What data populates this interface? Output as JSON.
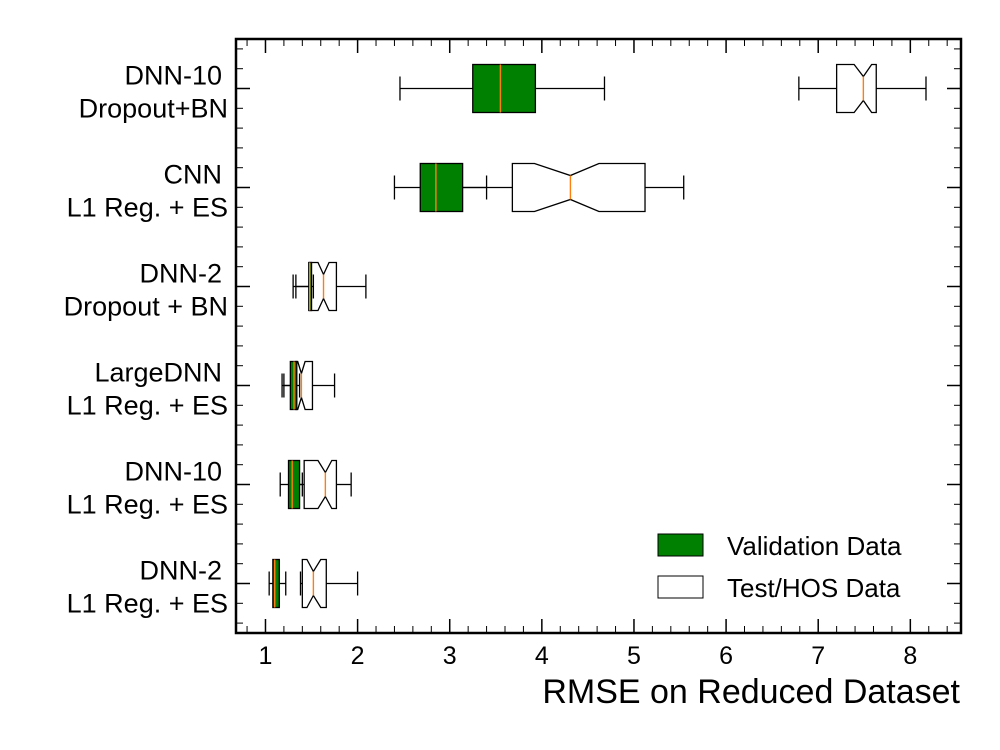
{
  "chart_data": {
    "type": "boxplot",
    "orientation": "horizontal",
    "title": "",
    "xlabel": "RMSE on Reduced Dataset",
    "ylabel": "",
    "xlim": [
      0.68,
      8.55
    ],
    "xticks": [
      1,
      2,
      3,
      4,
      5,
      6,
      7,
      8
    ],
    "grid": false,
    "legend_position": "bottom-right",
    "categories": [
      [
        "DNN-10",
        "Dropout+BN"
      ],
      [
        "CNN",
        "L1 Reg. + ES"
      ],
      [
        "DNN-2",
        "Dropout + BN"
      ],
      [
        "LargeDNN",
        "L1 Reg. + ES"
      ],
      [
        "DNN-10",
        "L1 Reg. + ES"
      ],
      [
        "DNN-2",
        "L1 Reg. + ES"
      ]
    ],
    "series": [
      {
        "name": "Validation Data",
        "color": "#008000",
        "notched": false,
        "boxes": [
          {
            "whislo": 2.46,
            "q1": 3.25,
            "med": 3.55,
            "q3": 3.93,
            "whishi": 4.68
          },
          {
            "whislo": 2.4,
            "q1": 2.68,
            "med": 2.85,
            "q3": 3.14,
            "whishi": 3.4
          },
          {
            "whislo": 1.3,
            "q1": 1.47,
            "med": 1.48,
            "q3": 1.5,
            "whishi": 1.52
          },
          {
            "whislo": 1.18,
            "q1": 1.27,
            "med": 1.31,
            "q3": 1.34,
            "whishi": 1.37
          },
          {
            "whislo": 1.16,
            "q1": 1.25,
            "med": 1.29,
            "q3": 1.37,
            "whishi": 1.4
          },
          {
            "whislo": 1.04,
            "q1": 1.08,
            "med": 1.1,
            "q3": 1.15,
            "whishi": 1.22
          }
        ]
      },
      {
        "name": "Test/HOS Data",
        "color": "#ffffff",
        "notched": true,
        "boxes": [
          {
            "whislo": 6.79,
            "q1": 7.2,
            "med": 7.49,
            "q3": 7.63,
            "whishi": 8.17,
            "notch_lo": 7.39,
            "notch_hi": 7.58
          },
          {
            "whislo": 2.76,
            "q1": 3.68,
            "med": 4.31,
            "q3": 5.12,
            "whishi": 5.54,
            "notch_lo": 3.92,
            "notch_hi": 4.62
          },
          {
            "whislo": 1.33,
            "q1": 1.48,
            "med": 1.63,
            "q3": 1.77,
            "whishi": 2.09,
            "notch_lo": 1.57,
            "notch_hi": 1.69
          },
          {
            "whislo": 1.2,
            "q1": 1.33,
            "med": 1.39,
            "q3": 1.51,
            "whishi": 1.75,
            "notch_lo": 1.35,
            "notch_hi": 1.43
          },
          {
            "whislo": 1.3,
            "q1": 1.42,
            "med": 1.65,
            "q3": 1.77,
            "whishi": 1.93,
            "notch_lo": 1.57,
            "notch_hi": 1.72
          },
          {
            "whislo": 1.38,
            "q1": 1.4,
            "med": 1.52,
            "q3": 1.66,
            "whishi": 2.0,
            "notch_lo": 1.45,
            "notch_hi": 1.6
          }
        ]
      }
    ],
    "median_color": "#ff7f0e"
  }
}
